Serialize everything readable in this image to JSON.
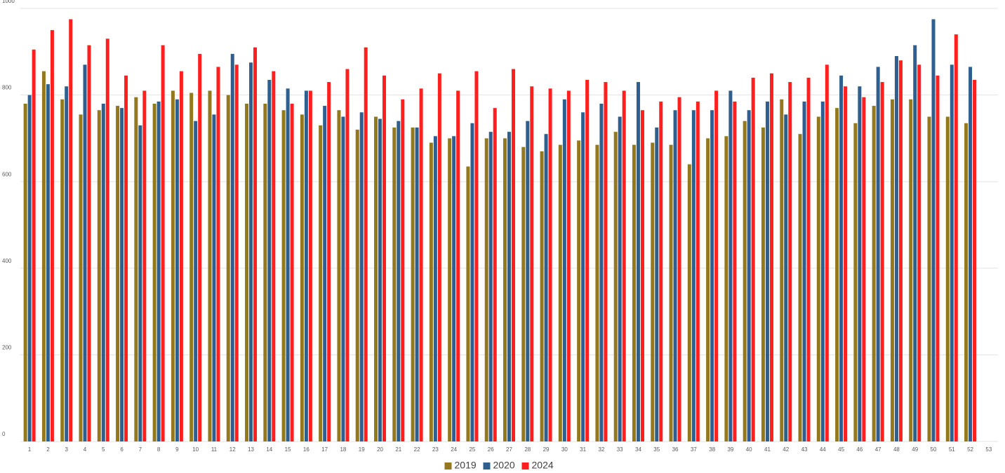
{
  "chart_data": {
    "type": "bar",
    "categories": [
      "1",
      "2",
      "3",
      "4",
      "5",
      "6",
      "7",
      "8",
      "9",
      "10",
      "11",
      "12",
      "13",
      "14",
      "15",
      "16",
      "17",
      "18",
      "19",
      "20",
      "21",
      "22",
      "23",
      "24",
      "25",
      "26",
      "27",
      "28",
      "29",
      "30",
      "31",
      "32",
      "33",
      "34",
      "35",
      "36",
      "37",
      "38",
      "39",
      "40",
      "41",
      "42",
      "43",
      "44",
      "45",
      "46",
      "47",
      "48",
      "49",
      "50",
      "51",
      "52",
      "53"
    ],
    "series": [
      {
        "name": "2019",
        "color": "#94781e",
        "values": [
          780,
          855,
          790,
          755,
          765,
          775,
          795,
          780,
          810,
          805,
          810,
          800,
          780,
          780,
          765,
          755,
          730,
          765,
          720,
          750,
          725,
          725,
          690,
          700,
          635,
          700,
          700,
          680,
          670,
          685,
          695,
          685,
          715,
          685,
          690,
          685,
          640,
          700,
          705,
          740,
          725,
          790,
          710,
          750,
          770,
          735,
          775,
          790,
          790,
          750,
          750,
          735,
          null
        ]
      },
      {
        "name": "2020",
        "color": "#2e5f8e",
        "values": [
          800,
          825,
          820,
          870,
          780,
          770,
          730,
          785,
          790,
          740,
          755,
          895,
          875,
          835,
          815,
          810,
          775,
          750,
          760,
          745,
          740,
          725,
          705,
          705,
          735,
          715,
          715,
          740,
          710,
          790,
          760,
          780,
          750,
          830,
          725,
          765,
          765,
          765,
          810,
          765,
          785,
          755,
          785,
          785,
          845,
          820,
          865,
          890,
          915,
          975,
          870,
          865,
          null
        ]
      },
      {
        "name": "2024",
        "color": "#ff1f1f",
        "values": [
          905,
          950,
          975,
          915,
          930,
          845,
          810,
          915,
          855,
          895,
          865,
          870,
          910,
          855,
          780,
          810,
          830,
          860,
          910,
          845,
          790,
          815,
          850,
          810,
          855,
          770,
          860,
          820,
          815,
          810,
          835,
          830,
          810,
          765,
          785,
          795,
          785,
          810,
          785,
          840,
          850,
          830,
          840,
          870,
          820,
          795,
          830,
          880,
          870,
          845,
          940,
          835,
          null
        ]
      }
    ],
    "ylim": [
      0,
      1000
    ],
    "yticks": [
      0,
      200,
      400,
      600,
      800,
      1000
    ],
    "grid": true,
    "legend": "bottom"
  }
}
